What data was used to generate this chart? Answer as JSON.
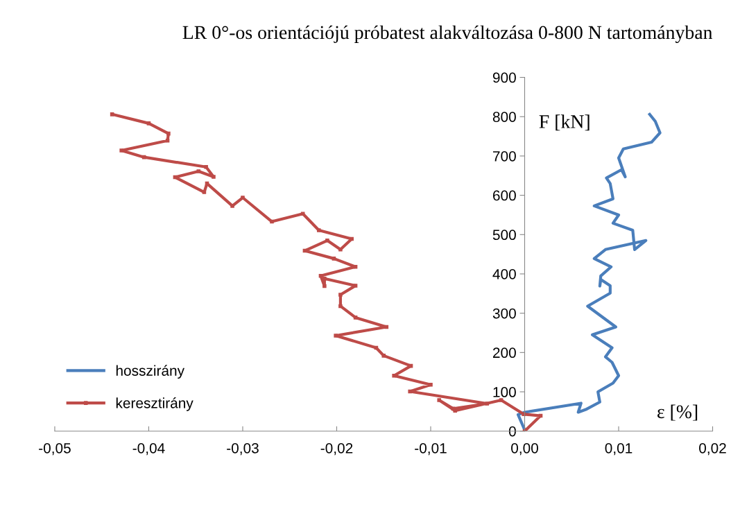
{
  "chart_data": {
    "type": "line",
    "title": "LR 0°-os orientációjú próbatest alakváltozása 0-800 N tartományban",
    "xlabel": "ε [%]",
    "ylabel": "F [kN]",
    "xlim": [
      -0.05,
      0.02
    ],
    "ylim": [
      0,
      900
    ],
    "xticks": [
      {
        "value": -0.05,
        "label": "-0,05"
      },
      {
        "value": -0.04,
        "label": "-0,04"
      },
      {
        "value": -0.03,
        "label": "-0,03"
      },
      {
        "value": -0.02,
        "label": "-0,02"
      },
      {
        "value": -0.01,
        "label": "-0,01"
      },
      {
        "value": 0,
        "label": "0,00"
      },
      {
        "value": 0.01,
        "label": "0,01"
      },
      {
        "value": 0.02,
        "label": "0,02"
      }
    ],
    "yticks": [
      0,
      100,
      200,
      300,
      400,
      500,
      600,
      700,
      800,
      900
    ],
    "grid": false,
    "legend": "bottom left",
    "series": [
      {
        "name": "hosszirány",
        "color": "#4a7ebb",
        "marker": "none",
        "x": [
          0.0,
          -0.0007,
          0.0,
          0.006,
          0.0057,
          0.0066,
          0.008,
          0.0078,
          0.0094,
          0.01,
          0.0093,
          0.0086,
          0.0093,
          0.0072,
          0.0097,
          0.0067,
          0.0091,
          0.0091,
          0.0081,
          0.008,
          0.0081,
          0.0092,
          0.0074,
          0.0086,
          0.0129,
          0.0117,
          0.0115,
          0.0094,
          0.01,
          0.0074,
          0.0094,
          0.0091,
          0.0087,
          0.0103,
          0.0107,
          0.01,
          0.0105,
          0.0135,
          0.0144,
          0.0139,
          0.0133
        ],
        "values": [
          3,
          42,
          48,
          71,
          48,
          56,
          74,
          100,
          122,
          141,
          175,
          189,
          212,
          245,
          265,
          318,
          351,
          370,
          386,
          369,
          395,
          418,
          439,
          462,
          485,
          462,
          511,
          529,
          550,
          573,
          591,
          630,
          644,
          665,
          647,
          695,
          718,
          735,
          759,
          788,
          806
        ]
      },
      {
        "name": "keresztirány",
        "color": "#be4b48",
        "marker": "square",
        "x": [
          0.0,
          0.0017,
          -0.0001,
          -0.0025,
          -0.0074,
          -0.0091,
          -0.0076,
          -0.004,
          -0.0122,
          -0.01,
          -0.0139,
          -0.0121,
          -0.015,
          -0.0158,
          -0.0201,
          -0.0147,
          -0.018,
          -0.0196,
          -0.0196,
          -0.018,
          -0.0213,
          -0.0213,
          -0.0217,
          -0.018,
          -0.0203,
          -0.0234,
          -0.021,
          -0.0196,
          -0.0184,
          -0.0219,
          -0.0236,
          -0.0269,
          -0.03,
          -0.0311,
          -0.0338,
          -0.0341,
          -0.0372,
          -0.0347,
          -0.0331,
          -0.0339,
          -0.0405,
          -0.0429,
          -0.038,
          -0.0379,
          -0.04,
          -0.0439
        ],
        "values": [
          0,
          39,
          43,
          79,
          52,
          79,
          57,
          70,
          101,
          118,
          141,
          166,
          192,
          212,
          243,
          265,
          289,
          318,
          347,
          370,
          388,
          369,
          395,
          418,
          439,
          459,
          485,
          462,
          489,
          511,
          553,
          533,
          594,
          573,
          630,
          608,
          646,
          661,
          647,
          672,
          697,
          714,
          739,
          757,
          783,
          806
        ]
      }
    ]
  }
}
